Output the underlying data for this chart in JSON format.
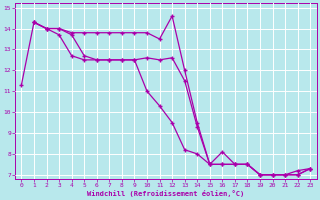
{
  "xlabel": "Windchill (Refroidissement éolien,°C)",
  "background_color": "#b8e8ec",
  "grid_color": "#ffffff",
  "line_color": "#aa00aa",
  "xlim": [
    -0.5,
    23.5
  ],
  "ylim": [
    6.8,
    15.2
  ],
  "yticks": [
    7,
    8,
    9,
    10,
    11,
    12,
    13,
    14,
    15
  ],
  "xticks": [
    0,
    1,
    2,
    3,
    4,
    5,
    6,
    7,
    8,
    9,
    10,
    11,
    12,
    13,
    14,
    15,
    16,
    17,
    18,
    19,
    20,
    21,
    22,
    23
  ],
  "line1_x": [
    0,
    1,
    2,
    3,
    4,
    5,
    6,
    7,
    8,
    9,
    10,
    11,
    12,
    13,
    14,
    15,
    16,
    17,
    18,
    19,
    20,
    21,
    22,
    23
  ],
  "line1_y": [
    11.3,
    14.3,
    14.0,
    14.0,
    13.8,
    13.8,
    13.8,
    13.8,
    13.8,
    13.8,
    13.8,
    13.5,
    14.6,
    12.0,
    9.5,
    7.5,
    7.5,
    7.5,
    7.5,
    7.0,
    7.0,
    7.0,
    7.2,
    7.3
  ],
  "line2_x": [
    1,
    2,
    3,
    4,
    5,
    6,
    7,
    8,
    9,
    10,
    11,
    12,
    13,
    14,
    15,
    16,
    17,
    18,
    19,
    20,
    21,
    22,
    23
  ],
  "line2_y": [
    14.3,
    14.0,
    14.0,
    13.7,
    12.7,
    12.5,
    12.5,
    12.5,
    12.5,
    12.6,
    12.5,
    12.6,
    11.5,
    9.3,
    7.5,
    7.5,
    7.5,
    7.5,
    7.0,
    7.0,
    7.0,
    7.0,
    7.3
  ],
  "line3_x": [
    1,
    2,
    3,
    4,
    5,
    6,
    7,
    8,
    9,
    10,
    11,
    12,
    13,
    14,
    15,
    16,
    17,
    18,
    19,
    20,
    21,
    22,
    23
  ],
  "line3_y": [
    14.3,
    14.0,
    13.7,
    12.7,
    12.5,
    12.5,
    12.5,
    12.5,
    12.5,
    11.0,
    10.3,
    9.5,
    8.2,
    8.0,
    7.5,
    8.1,
    7.5,
    7.5,
    7.0,
    7.0,
    7.0,
    7.0,
    7.3
  ]
}
